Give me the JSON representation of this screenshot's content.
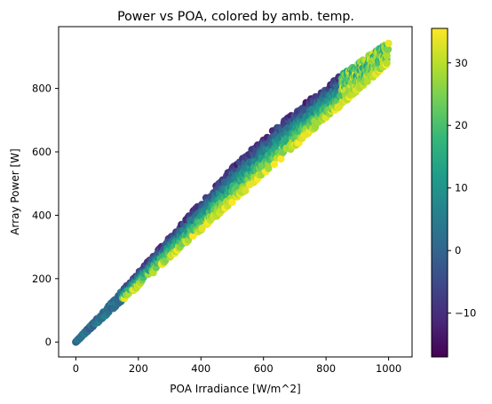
{
  "chart_data": {
    "type": "scatter",
    "title": "Power vs POA, colored by amb. temp.",
    "xlabel": "POA Irradiance [W/m^2]",
    "ylabel": "Array Power [W]",
    "xlim": [
      -55,
      1075
    ],
    "ylim": [
      -47,
      995
    ],
    "xticks": [
      0,
      200,
      400,
      600,
      800,
      1000
    ],
    "yticks": [
      0,
      200,
      400,
      600,
      800
    ],
    "grid": false,
    "colorbar": {
      "label": "",
      "colormap": "viridis",
      "range": [
        -17,
        35.5
      ],
      "ticks": [
        -10,
        0,
        10,
        20,
        30
      ]
    },
    "trend_envelope": {
      "note_hidden": "",
      "points": [
        {
          "x": 0,
          "y": 0,
          "temp": 5
        },
        {
          "x": 100,
          "y": 110,
          "temp": 8
        },
        {
          "x": 200,
          "y": 210,
          "temp": 10
        },
        {
          "x": 300,
          "y": 305,
          "temp": 5
        },
        {
          "x": 400,
          "y": 440,
          "temp": -8
        },
        {
          "x": 500,
          "y": 555,
          "temp": -12
        },
        {
          "x": 600,
          "y": 660,
          "temp": -10
        },
        {
          "x": 700,
          "y": 760,
          "temp": 5
        },
        {
          "x": 800,
          "y": 840,
          "temp": 10
        },
        {
          "x": 900,
          "y": 905,
          "temp": 15
        },
        {
          "x": 990,
          "y": 945,
          "temp": 25
        },
        {
          "x": 1010,
          "y": 905,
          "temp": 30
        },
        {
          "x": 900,
          "y": 815,
          "temp": 33
        },
        {
          "x": 800,
          "y": 720,
          "temp": 33
        },
        {
          "x": 700,
          "y": 630,
          "temp": 33
        },
        {
          "x": 600,
          "y": 540,
          "temp": 33
        },
        {
          "x": 500,
          "y": 450,
          "temp": 32
        },
        {
          "x": 400,
          "y": 355,
          "temp": 32
        },
        {
          "x": 300,
          "y": 270,
          "temp": 30
        },
        {
          "x": 200,
          "y": 180,
          "temp": 28
        },
        {
          "x": 100,
          "y": 90,
          "temp": 20
        }
      ]
    }
  },
  "colors": {
    "viridis": [
      "#440154",
      "#482878",
      "#3e4989",
      "#31688e",
      "#26828e",
      "#1f9e89",
      "#35b779",
      "#6ece58",
      "#b5de2b",
      "#fde725"
    ]
  }
}
